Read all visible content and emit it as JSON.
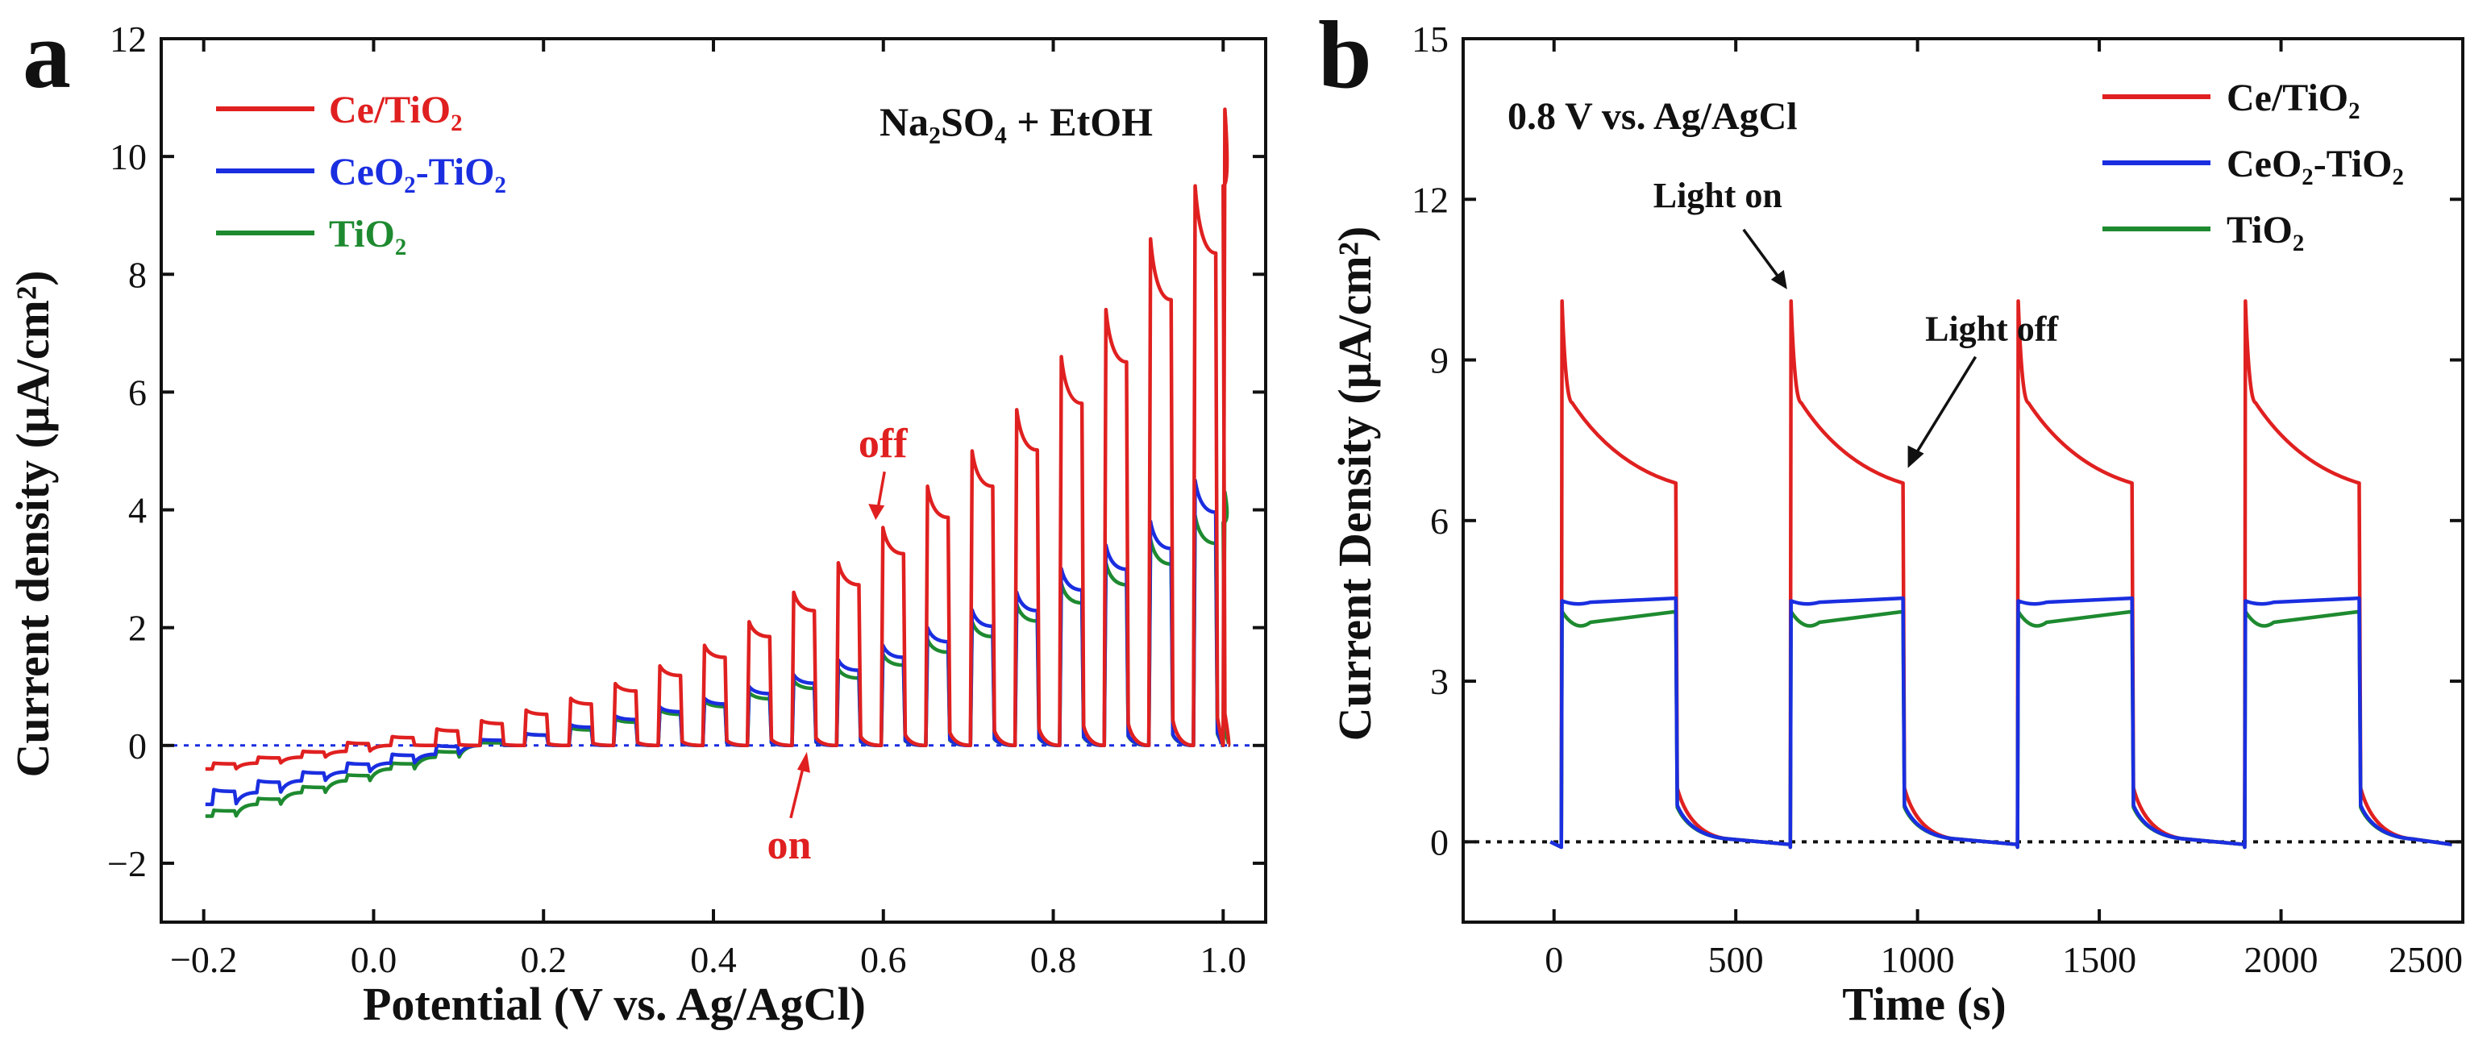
{
  "chart_data": [
    {
      "type": "line",
      "panel_label": "a",
      "xlabel": "Potential (V vs. Ag/AgCl)",
      "ylabel": "Current density (μA/cm²)",
      "xlim": [
        -0.25,
        1.05
      ],
      "ylim": [
        -3,
        12
      ],
      "xticks": [
        -0.2,
        0.0,
        0.2,
        0.4,
        0.6,
        0.8,
        1.0
      ],
      "xtick_labels": [
        "−0.2",
        "0.0",
        "0.2",
        "0.4",
        "0.6",
        "0.8",
        "1.0"
      ],
      "yticks": [
        -2,
        0,
        2,
        4,
        6,
        8,
        10,
        12
      ],
      "ytick_labels": [
        "−2",
        "0",
        "2",
        "4",
        "6",
        "8",
        "10",
        "12"
      ],
      "electrolyte_annotation": "Na₂SO₄ + EtOH",
      "annotations": [
        {
          "text": "off",
          "x": 0.59,
          "y": 3.8
        },
        {
          "text": "on",
          "x": 0.51,
          "y": 0.0
        }
      ],
      "chopping": {
        "start_V": -0.19,
        "end_V": 1.0,
        "period_V": 0.0525
      },
      "series": [
        {
          "name": "Ce/TiO₂",
          "color": "#e02020",
          "peak_x": [
            -0.19,
            -0.1375,
            -0.085,
            -0.0325,
            0.02,
            0.0725,
            0.125,
            0.1775,
            0.23,
            0.2825,
            0.335,
            0.3875,
            0.44,
            0.4925,
            0.545,
            0.5975,
            0.65,
            0.7025,
            0.755,
            0.8075,
            0.86,
            0.9125,
            0.965,
            1.0
          ],
          "peak_y": [
            -0.3,
            -0.2,
            -0.1,
            0.05,
            0.15,
            0.28,
            0.42,
            0.6,
            0.8,
            1.05,
            1.35,
            1.7,
            2.1,
            2.6,
            3.1,
            3.7,
            4.4,
            5.0,
            5.7,
            6.6,
            7.4,
            8.6,
            9.5,
            10.8
          ],
          "baseline_y": [
            -0.4,
            -0.3,
            -0.2,
            -0.1,
            0.0,
            0.0,
            0.0,
            0.0,
            0.0,
            0.0,
            0.0,
            0.0,
            0.0,
            0.0,
            0.0,
            0.0,
            0.0,
            0.0,
            0.0,
            0.0,
            0.0,
            0.0,
            0.0,
            0.0
          ]
        },
        {
          "name": "CeO₂-TiO₂",
          "color": "#1a2ee0",
          "peak_x": [
            -0.19,
            -0.1375,
            -0.085,
            -0.0325,
            0.02,
            0.0725,
            0.125,
            0.1775,
            0.23,
            0.2825,
            0.335,
            0.3875,
            0.44,
            0.4925,
            0.545,
            0.5975,
            0.65,
            0.7025,
            0.755,
            0.8075,
            0.86,
            0.9125,
            0.965
          ],
          "peak_y": [
            -0.75,
            -0.6,
            -0.45,
            -0.3,
            -0.15,
            0.0,
            0.1,
            0.2,
            0.35,
            0.5,
            0.65,
            0.8,
            1.0,
            1.2,
            1.45,
            1.7,
            2.0,
            2.3,
            2.6,
            3.0,
            3.4,
            3.8,
            4.5
          ],
          "baseline_y": [
            -1.0,
            -0.8,
            -0.6,
            -0.45,
            -0.3,
            -0.15,
            0.0,
            0.0,
            0.0,
            0.0,
            0.0,
            0.0,
            0.0,
            0.0,
            0.0,
            0.0,
            0.0,
            0.0,
            0.0,
            0.0,
            0.0,
            0.0,
            0.0
          ]
        },
        {
          "name": "TiO₂",
          "color": "#1e8a30",
          "peak_x": [
            -0.19,
            -0.1375,
            -0.085,
            -0.0325,
            0.02,
            0.0725,
            0.125,
            0.1775,
            0.23,
            0.2825,
            0.335,
            0.3875,
            0.44,
            0.4925,
            0.545,
            0.5975,
            0.65,
            0.7025,
            0.755,
            0.8075,
            0.86,
            0.9125,
            0.965,
            1.0
          ],
          "peak_y": [
            -1.1,
            -0.9,
            -0.7,
            -0.5,
            -0.3,
            -0.1,
            0.05,
            0.2,
            0.3,
            0.45,
            0.6,
            0.75,
            0.9,
            1.1,
            1.3,
            1.55,
            1.8,
            2.1,
            2.4,
            2.75,
            3.1,
            3.5,
            3.9,
            4.3
          ],
          "baseline_y": [
            -1.2,
            -1.0,
            -0.8,
            -0.6,
            -0.4,
            -0.2,
            0.0,
            0.0,
            0.0,
            0.0,
            0.0,
            0.0,
            0.0,
            0.0,
            0.0,
            0.0,
            0.0,
            0.0,
            0.0,
            0.0,
            0.0,
            0.0,
            0.0,
            0.0
          ]
        }
      ]
    },
    {
      "type": "line",
      "panel_label": "b",
      "xlabel": "Time (s)",
      "ylabel": "Current Density (μA/cm²)",
      "xlim": [
        -250,
        2500
      ],
      "ylim": [
        -1.5,
        15
      ],
      "xticks": [
        0,
        500,
        1000,
        1500,
        2000,
        2500
      ],
      "xtick_labels": [
        "0",
        "500",
        "1000",
        "1500",
        "2000",
        "2500"
      ],
      "yticks": [
        0,
        3,
        6,
        9,
        12,
        15
      ],
      "ytick_labels": [
        "0",
        "3",
        "6",
        "9",
        "12",
        "15"
      ],
      "bias_annotation": "0.8 V vs. Ag/AgCl",
      "annotations": [
        {
          "text": "Light on",
          "x": 650,
          "y": 10.2
        },
        {
          "text": "Light off",
          "x": 960,
          "y": 6.8
        }
      ],
      "baseline_dotted_y": 0,
      "light_on_times": [
        20,
        650,
        1275,
        1900
      ],
      "light_off_times": [
        335,
        960,
        1590,
        2215
      ],
      "series": [
        {
          "name": "Ce/TiO₂",
          "color": "#e02020",
          "spike": 10.1,
          "steady_start": 8.2,
          "steady_end": 6.7
        },
        {
          "name": "CeO₂-TiO₂",
          "color": "#1a2ee0",
          "spike": 4.5,
          "steady_start": 4.4,
          "steady_end": 4.55
        },
        {
          "name": "TiO₂",
          "color": "#1e8a30",
          "spike": 4.3,
          "steady_start": 3.9,
          "steady_end": 4.3
        }
      ]
    }
  ]
}
